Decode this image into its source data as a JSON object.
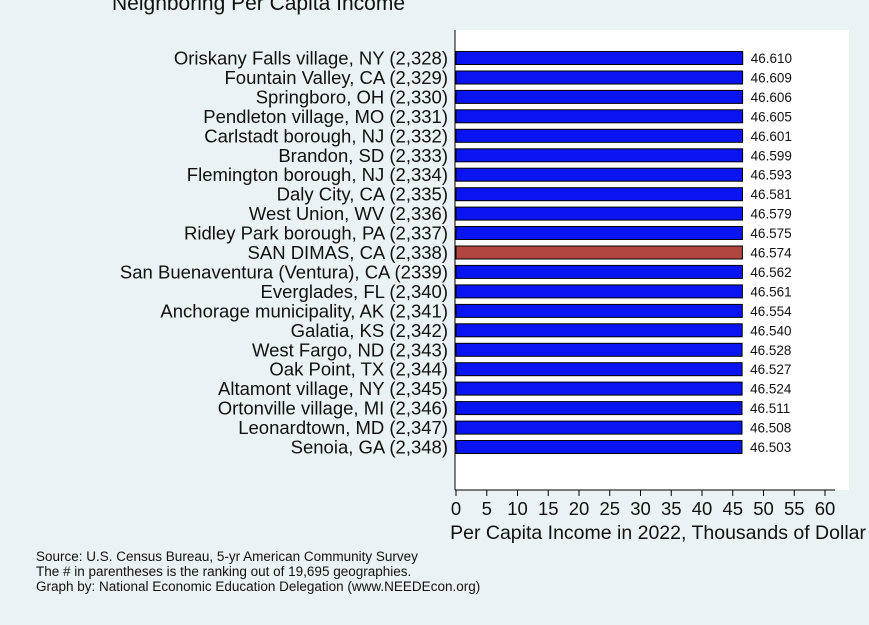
{
  "header": {
    "partial_title": "Neighboring Per Capita Income"
  },
  "chart_data": {
    "type": "bar",
    "orientation": "horizontal",
    "categories": [
      "Oriskany Falls village, NY (2,328)",
      "Fountain Valley, CA (2,329)",
      "Springboro, OH (2,330)",
      "Pendleton village, MO (2,331)",
      "Carlstadt borough, NJ (2,332)",
      "Brandon, SD (2,333)",
      "Flemington borough, NJ (2,334)",
      "Daly City, CA (2,335)",
      "West Union, WV (2,336)",
      "Ridley Park borough, PA (2,337)",
      "SAN DIMAS, CA (2,338)",
      "San Buenaventura (Ventura), CA (2339)",
      "Everglades, FL (2,340)",
      "Anchorage municipality, AK (2,341)",
      "Galatia, KS (2,342)",
      "West Fargo, ND (2,343)",
      "Oak Point, TX (2,344)",
      "Altamont village, NY (2,345)",
      "Ortonville village, MI (2,346)",
      "Leonardtown, MD (2,347)",
      "Senoia, GA (2,348)"
    ],
    "values": [
      46.61,
      46.609,
      46.606,
      46.605,
      46.601,
      46.599,
      46.593,
      46.581,
      46.579,
      46.575,
      46.574,
      46.562,
      46.561,
      46.554,
      46.54,
      46.528,
      46.527,
      46.524,
      46.511,
      46.508,
      46.503
    ],
    "value_labels": [
      "46.610",
      "46.609",
      "46.606",
      "46.605",
      "46.601",
      "46.599",
      "46.593",
      "46.581",
      "46.579",
      "46.575",
      "46.574",
      "46.562",
      "46.561",
      "46.554",
      "46.540",
      "46.528",
      "46.527",
      "46.524",
      "46.511",
      "46.508",
      "46.503"
    ],
    "highlight_index": 10,
    "bar_color": "#0a14f0",
    "highlight_color": "#b0463f",
    "xlim": [
      0,
      60
    ],
    "xticks": [
      0,
      5,
      10,
      15,
      20,
      25,
      30,
      35,
      40,
      45,
      50,
      55,
      60
    ],
    "xlabel": "Per Capita Income in 2022, Thousands of Dollar",
    "grid": false
  },
  "footer": {
    "source": "Source: U.S. Census Bureau, 5-yr American Community Survey",
    "note": "The # in parentheses is the ranking out of 19,695 geographies.",
    "credit": "Graph by: National Economic Education Delegation (www.NEEDEcon.org)"
  }
}
